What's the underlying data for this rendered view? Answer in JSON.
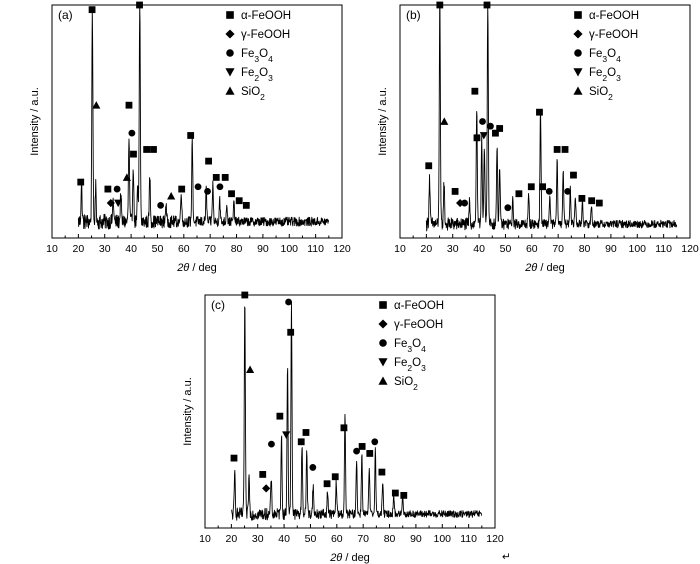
{
  "figure": {
    "corner_mark": "↵"
  },
  "chart_data": [
    {
      "type": "line",
      "panel_label": "(a)",
      "xlabel": "2θ / deg",
      "ylabel": "Intensity / a.u.",
      "xlim": [
        10,
        120
      ],
      "xticks": [
        10,
        20,
        30,
        40,
        50,
        60,
        70,
        80,
        90,
        100,
        110,
        120
      ],
      "ylim": [
        0,
        100
      ],
      "y_ticks_shown": false,
      "legend": {
        "placement": "top-right",
        "entries": [
          {
            "symbol": "square",
            "label": "α-FeOOH"
          },
          {
            "symbol": "diamond",
            "label": "γ-FeOOH"
          },
          {
            "symbol": "circle",
            "label": "Fe3O4"
          },
          {
            "symbol": "triangle-down",
            "label": "Fe2O3"
          },
          {
            "symbol": "triangle-up",
            "label": "SiO2"
          }
        ]
      },
      "series": [
        {
          "x_range": [
            20,
            115
          ],
          "baseline": 7,
          "noise": 3.5,
          "peaks": [
            [
              21.2,
              16
            ],
            [
              25.3,
              93
            ],
            [
              26.6,
              15
            ],
            [
              33.2,
              10
            ],
            [
              36.1,
              12
            ],
            [
              39.2,
              36
            ],
            [
              40.8,
              25
            ],
            [
              42.5,
              14
            ],
            [
              43.3,
              97
            ],
            [
              47.1,
              20
            ],
            [
              53.2,
              8
            ],
            [
              59.0,
              14
            ],
            [
              63.2,
              36
            ],
            [
              68.5,
              14
            ],
            [
              71.0,
              16
            ],
            [
              73.6,
              10
            ],
            [
              76.3,
              8
            ],
            [
              79.0,
              8
            ]
          ]
        }
      ],
      "annotations": [
        {
          "symbol": "square",
          "x": 20.9,
          "y": 24
        },
        {
          "symbol": "square",
          "x": 25.2,
          "y": 98
        },
        {
          "symbol": "triangle-up",
          "x": 26.8,
          "y": 57
        },
        {
          "symbol": "square",
          "x": 31.2,
          "y": 21
        },
        {
          "symbol": "diamond",
          "x": 32.3,
          "y": 15
        },
        {
          "symbol": "circle",
          "x": 34.7,
          "y": 21
        },
        {
          "symbol": "triangle-down",
          "x": 35.1,
          "y": 15
        },
        {
          "symbol": "triangle-up",
          "x": 38.4,
          "y": 26
        },
        {
          "symbol": "square",
          "x": 39.2,
          "y": 57
        },
        {
          "symbol": "circle",
          "x": 40.3,
          "y": 45
        },
        {
          "symbol": "square",
          "x": 40.9,
          "y": 36
        },
        {
          "symbol": "square",
          "x": 43.2,
          "y": 100
        },
        {
          "symbol": "square",
          "x": 45.9,
          "y": 38
        },
        {
          "symbol": "square",
          "x": 48.5,
          "y": 38
        },
        {
          "symbol": "circle",
          "x": 51.2,
          "y": 14
        },
        {
          "symbol": "triangle-up",
          "x": 55.2,
          "y": 18
        },
        {
          "symbol": "square",
          "x": 59.2,
          "y": 21
        },
        {
          "symbol": "square",
          "x": 62.6,
          "y": 44
        },
        {
          "symbol": "circle",
          "x": 65.4,
          "y": 22
        },
        {
          "symbol": "circle",
          "x": 69.0,
          "y": 20
        },
        {
          "symbol": "square",
          "x": 69.4,
          "y": 33
        },
        {
          "symbol": "square",
          "x": 72.3,
          "y": 26
        },
        {
          "symbol": "circle",
          "x": 73.7,
          "y": 22
        },
        {
          "symbol": "square",
          "x": 75.7,
          "y": 26
        },
        {
          "symbol": "square",
          "x": 78.1,
          "y": 19
        },
        {
          "symbol": "square",
          "x": 81.0,
          "y": 16
        },
        {
          "symbol": "square",
          "x": 83.7,
          "y": 14
        }
      ]
    },
    {
      "type": "line",
      "panel_label": "(b)",
      "xlabel": "2θ / deg",
      "ylabel": "Intensity / a.u.",
      "xlim": [
        10,
        120
      ],
      "xticks": [
        10,
        20,
        30,
        40,
        50,
        60,
        70,
        80,
        90,
        100,
        110,
        120
      ],
      "ylim": [
        0,
        100
      ],
      "y_ticks_shown": false,
      "legend": {
        "placement": "top-right",
        "entries": [
          {
            "symbol": "square",
            "label": "α-FeOOH"
          },
          {
            "symbol": "diamond",
            "label": "γ-FeOOH"
          },
          {
            "symbol": "circle",
            "label": "Fe3O4"
          },
          {
            "symbol": "triangle-down",
            "label": "Fe2O3"
          },
          {
            "symbol": "triangle-up",
            "label": "SiO2"
          }
        ]
      },
      "series": [
        {
          "x_range": [
            20,
            115
          ],
          "baseline": 6,
          "noise": 3,
          "peaks": [
            [
              21.2,
              20
            ],
            [
              25.1,
              97
            ],
            [
              26.7,
              18
            ],
            [
              36.4,
              10
            ],
            [
              39.1,
              50
            ],
            [
              41.0,
              38
            ],
            [
              42.0,
              32
            ],
            [
              43.3,
              99
            ],
            [
              46.8,
              34
            ],
            [
              47.8,
              24
            ],
            [
              52.8,
              10
            ],
            [
              58.8,
              12
            ],
            [
              63.3,
              50
            ],
            [
              66.8,
              12
            ],
            [
              69.6,
              27
            ],
            [
              71.9,
              24
            ],
            [
              74.6,
              16
            ],
            [
              76.5,
              12
            ],
            [
              79.2,
              10
            ],
            [
              82.6,
              8
            ]
          ]
        }
      ],
      "annotations": [
        {
          "symbol": "square",
          "x": 20.9,
          "y": 31
        },
        {
          "symbol": "square",
          "x": 25.1,
          "y": 100
        },
        {
          "symbol": "triangle-up",
          "x": 26.8,
          "y": 50
        },
        {
          "symbol": "square",
          "x": 30.9,
          "y": 20
        },
        {
          "symbol": "diamond",
          "x": 32.8,
          "y": 15
        },
        {
          "symbol": "circle",
          "x": 34.5,
          "y": 15
        },
        {
          "symbol": "square",
          "x": 38.4,
          "y": 63
        },
        {
          "symbol": "square",
          "x": 39.2,
          "y": 43
        },
        {
          "symbol": "circle",
          "x": 41.3,
          "y": 50
        },
        {
          "symbol": "triangle-down",
          "x": 41.8,
          "y": 44
        },
        {
          "symbol": "square",
          "x": 43.0,
          "y": 100
        },
        {
          "symbol": "circle",
          "x": 44.3,
          "y": 48
        },
        {
          "symbol": "square",
          "x": 46.2,
          "y": 45
        },
        {
          "symbol": "square",
          "x": 47.8,
          "y": 47
        },
        {
          "symbol": "circle",
          "x": 50.9,
          "y": 13
        },
        {
          "symbol": "square",
          "x": 55.1,
          "y": 19
        },
        {
          "symbol": "square",
          "x": 59.8,
          "y": 22
        },
        {
          "symbol": "square",
          "x": 62.9,
          "y": 54
        },
        {
          "symbol": "square",
          "x": 64.1,
          "y": 22
        },
        {
          "symbol": "circle",
          "x": 66.6,
          "y": 20
        },
        {
          "symbol": "square",
          "x": 69.6,
          "y": 38
        },
        {
          "symbol": "square",
          "x": 72.6,
          "y": 38
        },
        {
          "symbol": "circle",
          "x": 73.6,
          "y": 20
        },
        {
          "symbol": "square",
          "x": 75.8,
          "y": 27
        },
        {
          "symbol": "square",
          "x": 79.0,
          "y": 17
        },
        {
          "symbol": "square",
          "x": 82.7,
          "y": 16
        },
        {
          "symbol": "square",
          "x": 85.6,
          "y": 15
        }
      ]
    },
    {
      "type": "line",
      "panel_label": "(c)",
      "xlabel": "2θ / deg",
      "ylabel": "Intensity / a.u.",
      "xlim": [
        10,
        120
      ],
      "xticks": [
        10,
        20,
        30,
        40,
        50,
        60,
        70,
        80,
        90,
        100,
        110,
        120
      ],
      "ylim": [
        0,
        100
      ],
      "y_ticks_shown": false,
      "legend": {
        "placement": "top-right",
        "entries": [
          {
            "symbol": "square",
            "label": "α-FeOOH"
          },
          {
            "symbol": "diamond",
            "label": "γ-FeOOH"
          },
          {
            "symbol": "circle",
            "label": "Fe3O4"
          },
          {
            "symbol": "triangle-down",
            "label": "Fe2O3"
          },
          {
            "symbol": "triangle-up",
            "label": "SiO2"
          }
        ]
      },
      "series": [
        {
          "x_range": [
            20,
            115
          ],
          "baseline": 6,
          "noise": 2.8,
          "peaks": [
            [
              21.3,
              18
            ],
            [
              25.1,
              92
            ],
            [
              26.7,
              16
            ],
            [
              35.1,
              15
            ],
            [
              39.0,
              34
            ],
            [
              41.3,
              64
            ],
            [
              42.8,
              91
            ],
            [
              46.8,
              30
            ],
            [
              48.6,
              28
            ],
            [
              51.0,
              12
            ],
            [
              56.5,
              10
            ],
            [
              59.8,
              14
            ],
            [
              63.1,
              42
            ],
            [
              67.5,
              24
            ],
            [
              69.5,
              26
            ],
            [
              72.3,
              20
            ],
            [
              74.6,
              28
            ],
            [
              77.4,
              14
            ],
            [
              81.6,
              8
            ],
            [
              85.0,
              8
            ]
          ]
        }
      ],
      "annotations": [
        {
          "symbol": "square",
          "x": 21.0,
          "y": 30
        },
        {
          "symbol": "square",
          "x": 25.1,
          "y": 100
        },
        {
          "symbol": "triangle-up",
          "x": 27.1,
          "y": 68
        },
        {
          "symbol": "square",
          "x": 31.9,
          "y": 23
        },
        {
          "symbol": "diamond",
          "x": 33.2,
          "y": 17
        },
        {
          "symbol": "circle",
          "x": 35.2,
          "y": 36
        },
        {
          "symbol": "square",
          "x": 38.4,
          "y": 48
        },
        {
          "symbol": "triangle-down",
          "x": 40.8,
          "y": 40
        },
        {
          "symbol": "circle",
          "x": 41.7,
          "y": 97
        },
        {
          "symbol": "square",
          "x": 42.5,
          "y": 84
        },
        {
          "symbol": "square",
          "x": 46.5,
          "y": 37
        },
        {
          "symbol": "square",
          "x": 48.3,
          "y": 41
        },
        {
          "symbol": "circle",
          "x": 50.9,
          "y": 26
        },
        {
          "symbol": "square",
          "x": 56.3,
          "y": 19
        },
        {
          "symbol": "square",
          "x": 59.4,
          "y": 22
        },
        {
          "symbol": "square",
          "x": 62.7,
          "y": 43
        },
        {
          "symbol": "circle",
          "x": 67.5,
          "y": 33
        },
        {
          "symbol": "square",
          "x": 69.6,
          "y": 35
        },
        {
          "symbol": "square",
          "x": 72.5,
          "y": 32
        },
        {
          "symbol": "circle",
          "x": 74.4,
          "y": 37
        },
        {
          "symbol": "square",
          "x": 77.1,
          "y": 24
        },
        {
          "symbol": "square",
          "x": 82.2,
          "y": 15
        },
        {
          "symbol": "square",
          "x": 85.4,
          "y": 14
        }
      ]
    }
  ]
}
